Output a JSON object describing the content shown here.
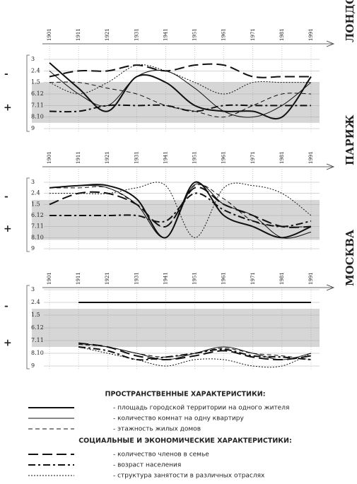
{
  "signs": {
    "minus": "-",
    "plus": "+"
  },
  "legend": {
    "groups": [
      {
        "title": "ПРОСТРАНСТВЕННЫЕ ХАРАКТЕРИСТИКИ:",
        "items": [
          {
            "name": "- площадь городской территории на одного жителя",
            "dash": "none",
            "width": 2
          },
          {
            "name": "- количество комнат на одну квартиру",
            "dash": "none",
            "width": 1
          },
          {
            "name": "- этажность жилых домов",
            "dash": "6 4",
            "width": 1
          }
        ]
      },
      {
        "title": "СОЦИАЛЬНЫЕ И ЭКОНОМИЧЕСКИЕ ХАРАКТЕРИСТИКИ:",
        "items": [
          {
            "name": "- количество членов в семье",
            "dash": "14 6",
            "width": 2
          },
          {
            "name": "- возраст населения",
            "dash": "10 4 3 4",
            "width": 2
          },
          {
            "name": "- структура занятости в различных отраслях",
            "dash": "2 2",
            "width": 1
          }
        ]
      }
    ]
  },
  "chart_data": [
    {
      "type": "line",
      "title": "ЛОНДОН",
      "x": [
        1901,
        1911,
        1921,
        1931,
        1941,
        1951,
        1961,
        1971,
        1981,
        1991
      ],
      "xlim": [
        1901,
        1991
      ],
      "ylim": [
        0,
        6
      ],
      "shade": [
        2,
        5.5
      ],
      "grid": true,
      "yticks": [
        {
          "value": 0,
          "label": "3"
        },
        {
          "value": 1,
          "label": "2.4"
        },
        {
          "value": 2,
          "label": "1.5"
        },
        {
          "value": 3,
          "label": "6.12"
        },
        {
          "value": 4,
          "label": "7.11"
        },
        {
          "value": 5,
          "label": "8.10"
        },
        {
          "value": 6,
          "label": "9"
        }
      ],
      "series": [
        {
          "values": [
            0.3,
            2.5,
            4.5,
            1.5,
            2,
            4,
            4.5,
            4.5,
            5,
            1.5
          ]
        },
        {
          "values": [
            1,
            3,
            4,
            1.5,
            1,
            2.5,
            4.5,
            5,
            4,
            2
          ]
        },
        {
          "values": [
            2,
            2,
            2.5,
            3,
            4,
            4.5,
            5,
            4,
            3,
            3
          ]
        },
        {
          "values": [
            1.5,
            1,
            1,
            0.5,
            1,
            0.5,
            0.5,
            1.5,
            1.5,
            1.5
          ]
        },
        {
          "values": [
            4.5,
            4.5,
            4,
            4,
            4,
            4.5,
            4,
            4,
            4,
            4
          ]
        },
        {
          "values": [
            2,
            3,
            2,
            0.5,
            1,
            2,
            3,
            2,
            2,
            2
          ]
        }
      ]
    },
    {
      "type": "line",
      "title": "ПАРИЖ",
      "x": [
        1901,
        1911,
        1921,
        1931,
        1941,
        1951,
        1961,
        1971,
        1981,
        1991
      ],
      "xlim": [
        1901,
        1991
      ],
      "ylim": [
        0,
        6
      ],
      "shade": [
        1.6,
        5.2
      ],
      "grid": true,
      "yticks": [
        {
          "value": 0,
          "label": "3"
        },
        {
          "value": 1,
          "label": "2.4"
        },
        {
          "value": 2,
          "label": "1.5"
        },
        {
          "value": 3,
          "label": "6.12"
        },
        {
          "value": 4,
          "label": "7.11"
        },
        {
          "value": 5,
          "label": "8.10"
        },
        {
          "value": 6,
          "label": "9"
        }
      ],
      "series": [
        {
          "values": [
            0.5,
            0.3,
            0.3,
            1.5,
            5,
            0,
            3,
            4,
            5,
            4
          ]
        },
        {
          "values": [
            0.5,
            0.3,
            0.5,
            2,
            5,
            0.2,
            2,
            3,
            5,
            4.5
          ]
        },
        {
          "values": [
            0.5,
            0.5,
            0.5,
            2,
            4,
            0.3,
            1.5,
            3.5,
            4,
            4
          ]
        },
        {
          "values": [
            2,
            1,
            1,
            2,
            4,
            0.5,
            2,
            3,
            4,
            4
          ]
        },
        {
          "values": [
            3,
            3,
            3,
            3,
            3.5,
            1,
            2.5,
            3.5,
            4,
            3.5
          ]
        },
        {
          "values": [
            1,
            1,
            1,
            0.5,
            0.3,
            5,
            0.5,
            0.3,
            1,
            3
          ]
        }
      ]
    },
    {
      "type": "line",
      "title": "МОСКВА",
      "x": [
        1901,
        1911,
        1921,
        1931,
        1941,
        1951,
        1961,
        1971,
        1981,
        1991
      ],
      "xlim": [
        1901,
        1991
      ],
      "ylim": [
        0,
        6
      ],
      "shade": [
        1.5,
        4.5
      ],
      "grid": true,
      "yticks": [
        {
          "value": 0,
          "label": "3"
        },
        {
          "value": 1,
          "label": "2.4"
        },
        {
          "value": 2,
          "label": "1.5"
        },
        {
          "value": 3,
          "label": "6.12"
        },
        {
          "value": 4,
          "label": "7.11"
        },
        {
          "value": 5,
          "label": "8.10"
        },
        {
          "value": 6,
          "label": "9"
        }
      ],
      "series": [
        {
          "values": [
            null,
            1,
            1,
            1,
            1,
            1,
            1,
            1,
            1,
            1
          ]
        },
        {
          "values": [
            null,
            4.2,
            4.5,
            5,
            5.5,
            5,
            4.5,
            5,
            5.5,
            5
          ]
        },
        {
          "values": [
            null,
            4.3,
            4.5,
            5,
            5.3,
            5,
            4.6,
            5,
            5.2,
            5.5
          ]
        },
        {
          "values": [
            null,
            4.2,
            4.5,
            5.2,
            5.5,
            5.2,
            4.8,
            5.3,
            5.5,
            5.2
          ]
        },
        {
          "values": [
            null,
            4.5,
            4.8,
            5.5,
            5.3,
            5,
            4.7,
            5.2,
            5.3,
            5.5
          ]
        },
        {
          "values": [
            null,
            4.5,
            5,
            5.5,
            6,
            5.5,
            5.5,
            6,
            6,
            5
          ]
        }
      ]
    }
  ]
}
